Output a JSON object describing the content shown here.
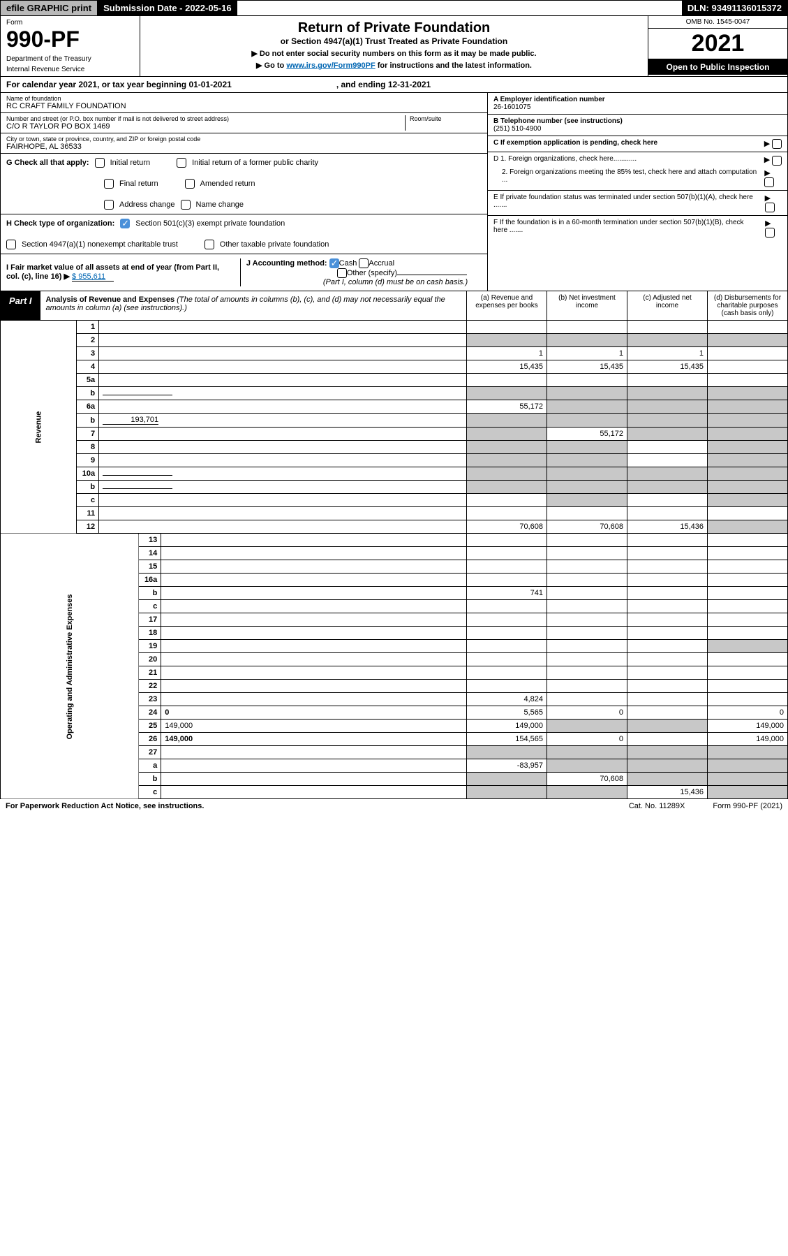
{
  "topbar": {
    "efile": "efile GRAPHIC print",
    "submission_label": "Submission Date - 2022-05-16",
    "dln": "DLN: 93491136015372"
  },
  "header": {
    "form_label": "Form",
    "form_number": "990-PF",
    "dept1": "Department of the Treasury",
    "dept2": "Internal Revenue Service",
    "title": "Return of Private Foundation",
    "subtitle": "or Section 4947(a)(1) Trust Treated as Private Foundation",
    "note1": "▶ Do not enter social security numbers on this form as it may be made public.",
    "note2_pre": "▶ Go to ",
    "note2_link": "www.irs.gov/Form990PF",
    "note2_post": " for instructions and the latest information.",
    "omb": "OMB No. 1545-0047",
    "year": "2021",
    "open": "Open to Public Inspection"
  },
  "cal_year": {
    "text": "For calendar year 2021, or tax year beginning 01-01-2021",
    "ending": ", and ending 12-31-2021"
  },
  "entity": {
    "name_label": "Name of foundation",
    "name": "RC CRAFT FAMILY FOUNDATION",
    "addr_label": "Number and street (or P.O. box number if mail is not delivered to street address)",
    "addr": "C/O R TAYLOR PO BOX 1469",
    "room_label": "Room/suite",
    "city_label": "City or town, state or province, country, and ZIP or foreign postal code",
    "city": "FAIRHOPE, AL  36533",
    "ein_label": "A Employer identification number",
    "ein": "26-1601075",
    "tel_label": "B Telephone number (see instructions)",
    "tel": "(251) 510-4900",
    "c_label": "C If exemption application is pending, check here"
  },
  "checks": {
    "g_label": "G Check all that apply:",
    "g_initial": "Initial return",
    "g_initial_former": "Initial return of a former public charity",
    "g_final": "Final return",
    "g_amended": "Amended return",
    "g_address": "Address change",
    "g_name": "Name change",
    "h_label": "H Check type of organization:",
    "h_501c3": "Section 501(c)(3) exempt private foundation",
    "h_4947": "Section 4947(a)(1) nonexempt charitable trust",
    "h_other": "Other taxable private foundation",
    "i_label": "I Fair market value of all assets at end of year (from Part II, col. (c), line 16) ▶",
    "i_value": "$  955,611",
    "j_label": "J Accounting method:",
    "j_cash": "Cash",
    "j_accrual": "Accrual",
    "j_other": "Other (specify)",
    "j_note": "(Part I, column (d) must be on cash basis.)",
    "d1": "D 1. Foreign organizations, check here............",
    "d2": "2. Foreign organizations meeting the 85% test, check here and attach computation ...",
    "e": "E  If private foundation status was terminated under section 507(b)(1)(A), check here .......",
    "f": "F  If the foundation is in a 60-month termination under section 507(b)(1)(B), check here ......."
  },
  "part1": {
    "label": "Part I",
    "title": "Analysis of Revenue and Expenses",
    "note": "(The total of amounts in columns (b), (c), and (d) may not necessarily equal the amounts in column (a) (see instructions).)",
    "col_a": "(a)   Revenue and expenses per books",
    "col_b": "(b)   Net investment income",
    "col_c": "(c)   Adjusted net income",
    "col_d": "(d)   Disbursements for charitable purposes (cash basis only)"
  },
  "side": {
    "revenue": "Revenue",
    "expenses": "Operating and Administrative Expenses"
  },
  "rows": [
    {
      "n": "1",
      "d": "",
      "a": "",
      "b": "",
      "c": "",
      "shade_bcd": false
    },
    {
      "n": "2",
      "d": "",
      "a": "",
      "b": "",
      "c": "",
      "shade_all": true,
      "bold_not": true
    },
    {
      "n": "3",
      "d": "",
      "a": "1",
      "b": "1",
      "c": "1"
    },
    {
      "n": "4",
      "d": "",
      "a": "15,435",
      "b": "15,435",
      "c": "15,435"
    },
    {
      "n": "5a",
      "d": "",
      "a": "",
      "b": "",
      "c": ""
    },
    {
      "n": "b",
      "d": "",
      "a": "",
      "b": "",
      "c": "",
      "shade_all": true,
      "inline_box": true
    },
    {
      "n": "6a",
      "d": "",
      "a": "55,172",
      "b": "",
      "c": "",
      "shade_bcd": true
    },
    {
      "n": "b",
      "d": "",
      "a": "",
      "b": "",
      "c": "",
      "shade_all": true,
      "inline_val": "193,701"
    },
    {
      "n": "7",
      "d": "",
      "a": "",
      "b": "55,172",
      "c": "",
      "shade_a": true,
      "shade_cd": true
    },
    {
      "n": "8",
      "d": "",
      "a": "",
      "b": "",
      "c": "",
      "shade_ab": true,
      "shade_d": true
    },
    {
      "n": "9",
      "d": "",
      "a": "",
      "b": "",
      "c": "",
      "shade_ab": true,
      "shade_d": true
    },
    {
      "n": "10a",
      "d": "",
      "a": "",
      "b": "",
      "c": "",
      "shade_all": true,
      "inline_box": true
    },
    {
      "n": "b",
      "d": "",
      "a": "",
      "b": "",
      "c": "",
      "shade_all": true,
      "inline_box": true
    },
    {
      "n": "c",
      "d": "",
      "a": "",
      "b": "",
      "c": "",
      "shade_b": true,
      "shade_d": true
    },
    {
      "n": "11",
      "d": "",
      "a": "",
      "b": "",
      "c": ""
    },
    {
      "n": "12",
      "d": "",
      "a": "70,608",
      "b": "70,608",
      "c": "15,436",
      "bold": true,
      "shade_d": true
    }
  ],
  "exp_rows": [
    {
      "n": "13",
      "d": "",
      "a": "",
      "b": "",
      "c": ""
    },
    {
      "n": "14",
      "d": "",
      "a": "",
      "b": "",
      "c": ""
    },
    {
      "n": "15",
      "d": "",
      "a": "",
      "b": "",
      "c": ""
    },
    {
      "n": "16a",
      "d": "",
      "a": "",
      "b": "",
      "c": ""
    },
    {
      "n": "b",
      "d": "",
      "a": "741",
      "b": "",
      "c": ""
    },
    {
      "n": "c",
      "d": "",
      "a": "",
      "b": "",
      "c": ""
    },
    {
      "n": "17",
      "d": "",
      "a": "",
      "b": "",
      "c": ""
    },
    {
      "n": "18",
      "d": "",
      "a": "",
      "b": "",
      "c": ""
    },
    {
      "n": "19",
      "d": "",
      "a": "",
      "b": "",
      "c": "",
      "shade_d": true
    },
    {
      "n": "20",
      "d": "",
      "a": "",
      "b": "",
      "c": ""
    },
    {
      "n": "21",
      "d": "",
      "a": "",
      "b": "",
      "c": ""
    },
    {
      "n": "22",
      "d": "",
      "a": "",
      "b": "",
      "c": ""
    },
    {
      "n": "23",
      "d": "",
      "a": "4,824",
      "b": "",
      "c": ""
    },
    {
      "n": "24",
      "d": "0",
      "a": "5,565",
      "b": "0",
      "c": "",
      "bold": true
    },
    {
      "n": "25",
      "d": "149,000",
      "a": "149,000",
      "b": "",
      "c": "",
      "shade_bc": true
    },
    {
      "n": "26",
      "d": "149,000",
      "a": "154,565",
      "b": "0",
      "c": "",
      "bold": true
    },
    {
      "n": "27",
      "d": "",
      "a": "",
      "b": "",
      "c": "",
      "shade_all": true
    },
    {
      "n": "a",
      "d": "",
      "a": "-83,957",
      "b": "",
      "c": "",
      "bold": true,
      "shade_bcd": true
    },
    {
      "n": "b",
      "d": "",
      "a": "",
      "b": "70,608",
      "c": "",
      "bold": true,
      "shade_a": true,
      "shade_cd": true
    },
    {
      "n": "c",
      "d": "",
      "a": "",
      "b": "",
      "c": "15,436",
      "bold": true,
      "shade_ab": true,
      "shade_d": true
    }
  ],
  "footer": {
    "left": "For Paperwork Reduction Act Notice, see instructions.",
    "cat": "Cat. No. 11289X",
    "right": "Form 990-PF (2021)"
  }
}
